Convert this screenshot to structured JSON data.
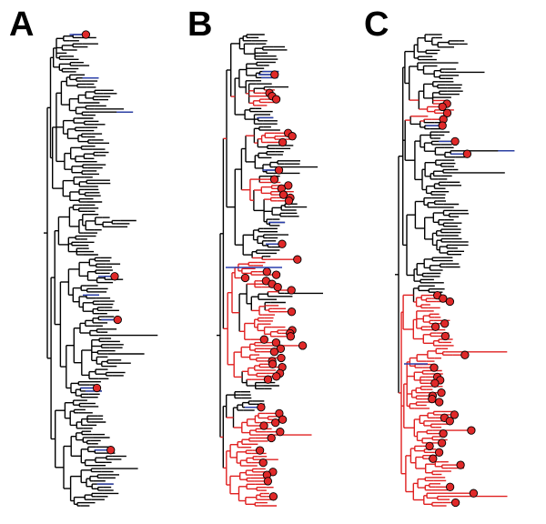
{
  "panels": [
    {
      "label": "A"
    },
    {
      "label": "B"
    },
    {
      "label": "C"
    }
  ],
  "colors": {
    "tree_branch": "#000000",
    "ancestral_branch": "#2a3fae",
    "highlighted_clade": "#e02020",
    "tip_marker_fill": "#e02929",
    "tip_marker_stroke": "#000000"
  }
}
